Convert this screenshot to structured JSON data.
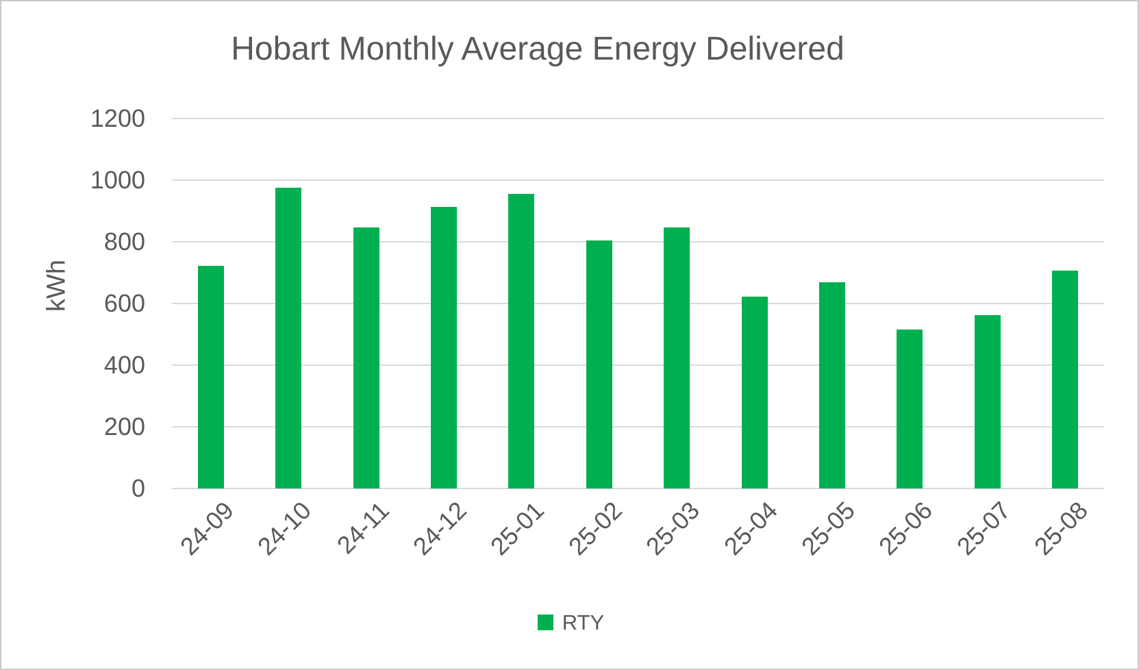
{
  "chart_data": {
    "type": "bar",
    "title": "Hobart Monthly Average Energy Delivered",
    "ylabel": "kWh",
    "xlabel": "",
    "categories": [
      "24-09",
      "24-10",
      "24-11",
      "24-12",
      "25-01",
      "25-02",
      "25-03",
      "25-04",
      "25-05",
      "25-06",
      "25-07",
      "25-08"
    ],
    "series": [
      {
        "name": "RTY",
        "color": "#00B050",
        "values": [
          722,
          976,
          846,
          914,
          955,
          804,
          846,
          622,
          670,
          515,
          563,
          707
        ]
      }
    ],
    "ylim": [
      0,
      1200
    ],
    "yticks": [
      0,
      200,
      400,
      600,
      800,
      1000,
      1200
    ],
    "grid": true,
    "legend_position": "bottom",
    "legend_entries": [
      "RTY"
    ]
  },
  "colors": {
    "bar_green": "#00B050",
    "text_gray": "#595959",
    "gridline_gray": "#D9D9D9",
    "border_gray": "#CCC8C8",
    "background": "#FFFFFF"
  }
}
